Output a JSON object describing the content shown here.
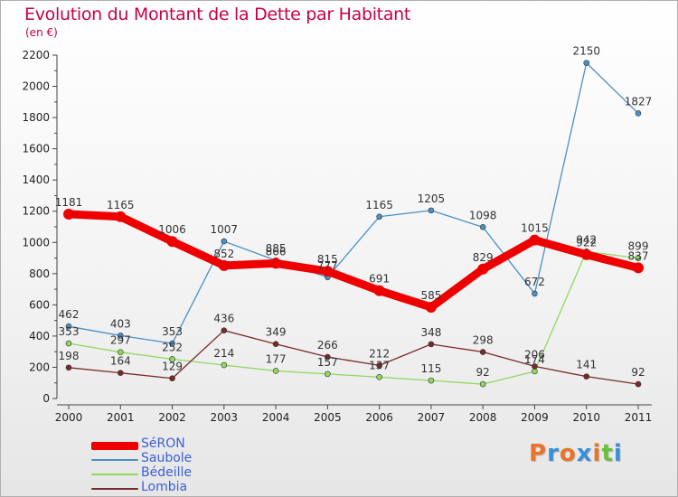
{
  "header": {
    "title": "Evolution du Montant de la Dette par Habitant",
    "subtitle": "(en €)"
  },
  "logo": {
    "letters": [
      "P",
      "r",
      "o",
      "x",
      "i",
      "t",
      "i"
    ],
    "colors": [
      "#e8742a",
      "#3a8fd6",
      "#e8742a",
      "#3a8fd6",
      "#e8742a",
      "#6cbf3a",
      "#3a8fd6"
    ]
  },
  "chart_data": {
    "type": "line",
    "title": "Evolution du Montant de la Dette par Habitant",
    "subtitle": "(en €)",
    "categories": [
      "2000",
      "2001",
      "2002",
      "2003",
      "2004",
      "2005",
      "2006",
      "2007",
      "2008",
      "2009",
      "2010",
      "2011"
    ],
    "ylim": [
      0,
      2200
    ],
    "yticks": [
      0,
      200,
      400,
      600,
      800,
      1000,
      1200,
      1400,
      1600,
      1800,
      2000,
      2200
    ],
    "grid": false,
    "legend_position": "bottom-left",
    "series": [
      {
        "name": "SéRON",
        "color": "#ee0000",
        "emphasis": true,
        "values": [
          1181,
          1165,
          1006,
          852,
          866,
          815,
          691,
          585,
          829,
          1015,
          922,
          837
        ],
        "labels": [
          "1181",
          "1165",
          "1006",
          "852",
          "866",
          "815",
          "691",
          "585",
          "829",
          "1015",
          "922",
          "837"
        ]
      },
      {
        "name": "Saubole",
        "color": "#4a90c8",
        "values": [
          462,
          403,
          353,
          1007,
          885,
          777,
          1165,
          1205,
          1098,
          672,
          2150,
          1827
        ],
        "labels": [
          "462",
          "403",
          "353",
          "1007",
          "885",
          "777",
          "1165",
          "1205",
          "1098",
          "672",
          "2150",
          "1827"
        ]
      },
      {
        "name": "Bédeille",
        "color": "#8fd860",
        "values": [
          353,
          297,
          252,
          214,
          177,
          157,
          137,
          115,
          92,
          174,
          942,
          899
        ],
        "labels": [
          "353",
          "297",
          "252",
          "214",
          "177",
          "157",
          "137",
          "115",
          "92",
          "174",
          "942",
          "899"
        ]
      },
      {
        "name": "Lombia",
        "color": "#7a2a2a",
        "values": [
          198,
          164,
          129,
          436,
          349,
          266,
          212,
          348,
          298,
          206,
          141,
          92
        ],
        "labels": [
          "198",
          "164",
          "129",
          "436",
          "349",
          "266",
          "212",
          "348",
          "298",
          "206",
          "141",
          "92"
        ]
      }
    ]
  }
}
